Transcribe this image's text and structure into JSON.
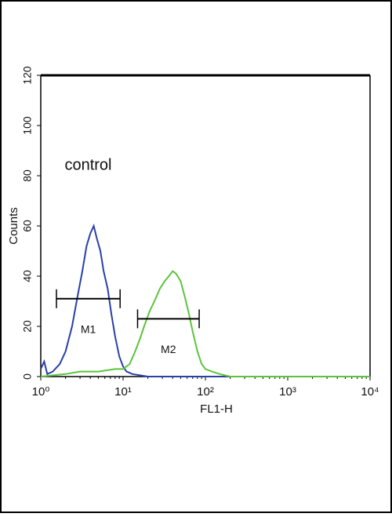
{
  "chart_data": {
    "type": "line",
    "xlabel": "FL1-H",
    "ylabel": "Counts",
    "xscale": "log",
    "xlim": [
      1,
      10000
    ],
    "ylim": [
      0,
      120
    ],
    "xticks": [
      {
        "value": 1,
        "label": "10⁰"
      },
      {
        "value": 10,
        "label": "10¹"
      },
      {
        "value": 100,
        "label": "10²"
      },
      {
        "value": 1000,
        "label": "10³"
      },
      {
        "value": 10000,
        "label": "10⁴"
      }
    ],
    "yticks": [
      0,
      20,
      40,
      60,
      80,
      100,
      120
    ],
    "series": [
      {
        "color": "#2a3fa8",
        "x": [
          1.0,
          1.1,
          1.2,
          1.4,
          1.7,
          2.0,
          2.4,
          2.8,
          3.2,
          3.6,
          4.0,
          4.4,
          4.8,
          5.3,
          5.8,
          6.5,
          7.2,
          8.0,
          9.0,
          10,
          11,
          13,
          20,
          100,
          10000
        ],
        "values": [
          3,
          6,
          1,
          2,
          5,
          10,
          20,
          32,
          42,
          52,
          57,
          60,
          55,
          50,
          42,
          35,
          25,
          16,
          8,
          4,
          2,
          1,
          0,
          0,
          0
        ]
      },
      {
        "color": "#5cc43c",
        "x": [
          1,
          2,
          3,
          5,
          8,
          10,
          12,
          14,
          16,
          18,
          21,
          24,
          28,
          32,
          36,
          40,
          44,
          50,
          56,
          62,
          70,
          80,
          90,
          100,
          120,
          150,
          200,
          10000
        ],
        "values": [
          0,
          1,
          2,
          2,
          3,
          3,
          5,
          10,
          15,
          20,
          26,
          30,
          35,
          38,
          40,
          42,
          41,
          38,
          32,
          26,
          18,
          10,
          5,
          3,
          2,
          1,
          0,
          0
        ]
      }
    ],
    "markers": [
      {
        "label": "M1",
        "x": [
          1.55,
          9.2
        ],
        "y": 31
      },
      {
        "label": "M2",
        "x": [
          15,
          84
        ],
        "y": 23
      }
    ],
    "annotations": [
      {
        "text": "control",
        "x": 1.95,
        "y": 84
      }
    ]
  }
}
